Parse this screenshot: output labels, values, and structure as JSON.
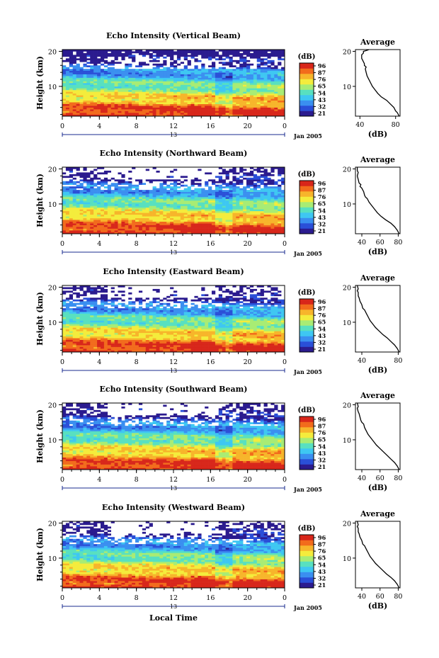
{
  "figure": {
    "shared_xlabel": "Local Time",
    "date_label": "Jan 2005",
    "day_marker": "13",
    "colorbar_unit": "(dB)",
    "colorbar_ticks": [
      "96",
      "87",
      "76",
      "65",
      "54",
      "43",
      "32",
      "21"
    ],
    "colormap": [
      "#2b1b8f",
      "#2a4fd8",
      "#3a8ff0",
      "#3ec7f2",
      "#58e0c0",
      "#a8ec74",
      "#f4ec3c",
      "#f7b52b",
      "#f26b1c",
      "#d8261a"
    ]
  },
  "chart_data": [
    {
      "type": "heatmap",
      "title": "Echo Intensity (Vertical Beam)",
      "ylabel": "Height (km)",
      "x_ticks": [
        "0",
        "4",
        "8",
        "12",
        "16",
        "20",
        "0"
      ],
      "y_ticks": [
        "10",
        "20"
      ],
      "xlim": [
        0,
        24
      ],
      "ylim": [
        1.5,
        20.5
      ],
      "zlim": [
        21,
        96
      ],
      "z_unit": "dB",
      "profile": {
        "title": "Average",
        "xlabel": "(dB)",
        "x_ticks": [
          "40",
          "80"
        ],
        "xlim": [
          35,
          85
        ],
        "y_ticks": [
          "10",
          "20"
        ],
        "x": [
          84,
          82,
          80,
          78,
          74,
          70,
          64,
          60,
          57,
          54,
          52,
          50,
          49,
          48,
          47,
          46,
          47,
          45,
          45,
          44,
          43,
          42,
          42,
          44,
          44,
          48,
          50
        ],
        "y": [
          1.5,
          2.5,
          3.0,
          4.0,
          5.0,
          6.0,
          7.0,
          8.0,
          9.0,
          10.0,
          11.0,
          12.0,
          12.5,
          13.0,
          14.0,
          15.0,
          15.5,
          16.0,
          16.5,
          17.0,
          17.5,
          18.0,
          19.0,
          19.5,
          20.0,
          20.3,
          20.5
        ]
      }
    },
    {
      "type": "heatmap",
      "title": "Echo Intensity (Northward Beam)",
      "ylabel": "Height (km)",
      "x_ticks": [
        "0",
        "4",
        "8",
        "12",
        "16",
        "20",
        "0"
      ],
      "y_ticks": [
        "10",
        "20"
      ],
      "xlim": [
        0,
        24
      ],
      "ylim": [
        1.5,
        20.5
      ],
      "zlim": [
        21,
        96
      ],
      "z_unit": "dB",
      "profile": {
        "title": "Average",
        "xlabel": "(dB)",
        "x_ticks": [
          "40",
          "60",
          "80"
        ],
        "xlim": [
          33,
          82
        ],
        "y_ticks": [
          "10",
          "20"
        ],
        "x": [
          81,
          79,
          76,
          72,
          66,
          61,
          57,
          54,
          51,
          48,
          46,
          44,
          43,
          42,
          41,
          40,
          38,
          39,
          37,
          36,
          35,
          36,
          35,
          35
        ],
        "y": [
          1.5,
          2.5,
          3.5,
          4.5,
          5.5,
          6.5,
          7.5,
          8.5,
          9.5,
          10.5,
          11.5,
          12.0,
          12.5,
          13.5,
          14.0,
          14.5,
          15.0,
          15.5,
          16.0,
          17.0,
          18.0,
          19.0,
          19.5,
          20.5
        ]
      }
    },
    {
      "type": "heatmap",
      "title": "Echo Intensity (Eastward Beam)",
      "ylabel": "Height (km)",
      "x_ticks": [
        "0",
        "4",
        "8",
        "12",
        "16",
        "20",
        "0"
      ],
      "y_ticks": [
        "10",
        "20"
      ],
      "xlim": [
        0,
        24
      ],
      "ylim": [
        1.5,
        20.5
      ],
      "zlim": [
        21,
        96
      ],
      "z_unit": "dB",
      "profile": {
        "title": "Average",
        "xlabel": "(dB)",
        "x_ticks": [
          "40",
          "80"
        ],
        "xlim": [
          33,
          82
        ],
        "y_ticks": [
          "10",
          "20"
        ],
        "x": [
          81,
          79,
          76,
          72,
          68,
          63,
          59,
          55,
          52,
          49,
          47,
          45,
          43,
          41,
          40,
          39,
          38,
          37,
          36,
          36,
          35,
          36,
          35
        ],
        "y": [
          1.5,
          2.5,
          3.5,
          4.5,
          5.5,
          6.5,
          7.5,
          8.5,
          9.5,
          10.5,
          11.5,
          12.5,
          13.5,
          14.0,
          15.0,
          15.5,
          16.0,
          17.0,
          17.5,
          18.5,
          19.0,
          19.5,
          20.5
        ]
      }
    },
    {
      "type": "heatmap",
      "title": "Echo Intensity (Southward Beam)",
      "ylabel": "Height (km)",
      "x_ticks": [
        "0",
        "4",
        "8",
        "12",
        "16",
        "20",
        "0"
      ],
      "y_ticks": [
        "10",
        "20"
      ],
      "xlim": [
        0,
        24
      ],
      "ylim": [
        1.5,
        20.5
      ],
      "zlim": [
        21,
        96
      ],
      "z_unit": "dB",
      "profile": {
        "title": "Average",
        "xlabel": "(dB)",
        "x_ticks": [
          "40",
          "60",
          "80"
        ],
        "xlim": [
          33,
          82
        ],
        "y_ticks": [
          "10",
          "20"
        ],
        "x": [
          81,
          79,
          76,
          72,
          68,
          64,
          60,
          56,
          53,
          50,
          47,
          45,
          43,
          42,
          40,
          39,
          38,
          37,
          36,
          35,
          36,
          35
        ],
        "y": [
          1.5,
          2.5,
          3.5,
          4.5,
          5.5,
          6.5,
          7.5,
          8.5,
          9.5,
          10.5,
          11.5,
          12.5,
          13.5,
          14.5,
          15.0,
          15.5,
          16.5,
          17.5,
          18.0,
          19.0,
          19.5,
          20.5
        ]
      }
    },
    {
      "type": "heatmap",
      "title": "Echo Intensity (Westward Beam)",
      "ylabel": "Height (km)",
      "x_ticks": [
        "0",
        "4",
        "8",
        "12",
        "16",
        "20",
        "0"
      ],
      "y_ticks": [
        "10",
        "20"
      ],
      "xlim": [
        0,
        24
      ],
      "ylim": [
        1.5,
        20.5
      ],
      "zlim": [
        21,
        96
      ],
      "z_unit": "dB",
      "profile": {
        "title": "Average",
        "xlabel": "(dB)",
        "x_ticks": [
          "40",
          "60",
          "80"
        ],
        "xlim": [
          33,
          82
        ],
        "y_ticks": [
          "10",
          "20"
        ],
        "x": [
          81,
          79,
          76,
          72,
          67,
          63,
          59,
          55,
          52,
          49,
          47,
          45,
          43,
          41,
          40,
          39,
          38,
          37,
          36,
          36,
          35,
          36,
          35
        ],
        "y": [
          1.5,
          2.5,
          3.5,
          4.5,
          5.5,
          6.5,
          7.5,
          8.5,
          9.5,
          10.5,
          11.5,
          12.5,
          13.5,
          14.0,
          15.0,
          15.5,
          16.0,
          17.0,
          17.5,
          18.5,
          19.0,
          19.5,
          20.5
        ]
      }
    }
  ]
}
